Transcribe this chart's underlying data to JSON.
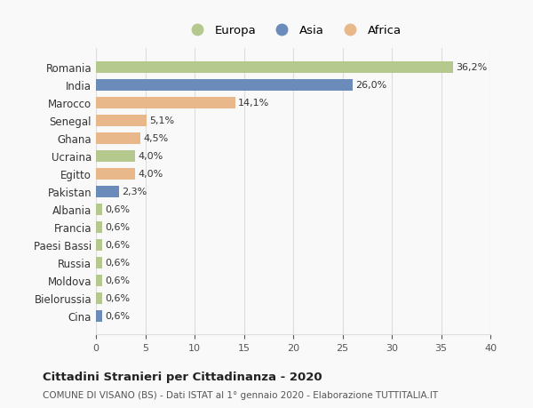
{
  "countries": [
    "Romania",
    "India",
    "Marocco",
    "Senegal",
    "Ghana",
    "Ucraina",
    "Egitto",
    "Pakistan",
    "Albania",
    "Francia",
    "Paesi Bassi",
    "Russia",
    "Moldova",
    "Bielorussia",
    "Cina"
  ],
  "values": [
    36.2,
    26.0,
    14.1,
    5.1,
    4.5,
    4.0,
    4.0,
    2.3,
    0.6,
    0.6,
    0.6,
    0.6,
    0.6,
    0.6,
    0.6
  ],
  "labels": [
    "36,2%",
    "26,0%",
    "14,1%",
    "5,1%",
    "4,5%",
    "4,0%",
    "4,0%",
    "2,3%",
    "0,6%",
    "0,6%",
    "0,6%",
    "0,6%",
    "0,6%",
    "0,6%",
    "0,6%"
  ],
  "colors": [
    "#b5c98e",
    "#6b8cba",
    "#e8b88a",
    "#e8b88a",
    "#e8b88a",
    "#b5c98e",
    "#e8b88a",
    "#6b8cba",
    "#b5c98e",
    "#b5c98e",
    "#b5c98e",
    "#b5c98e",
    "#b5c98e",
    "#b5c98e",
    "#6b8cba"
  ],
  "continent_names": [
    "Europa",
    "Asia",
    "Africa"
  ],
  "continent_colors": [
    "#b5c98e",
    "#6b8cba",
    "#e8b88a"
  ],
  "xlim": [
    0,
    40
  ],
  "xticks": [
    0,
    5,
    10,
    15,
    20,
    25,
    30,
    35,
    40
  ],
  "title": "Cittadini Stranieri per Cittadinanza - 2020",
  "subtitle": "COMUNE DI VISANO (BS) - Dati ISTAT al 1° gennaio 2020 - Elaborazione TUTTITALIA.IT",
  "background_color": "#f9f9f9",
  "grid_color": "#dddddd"
}
